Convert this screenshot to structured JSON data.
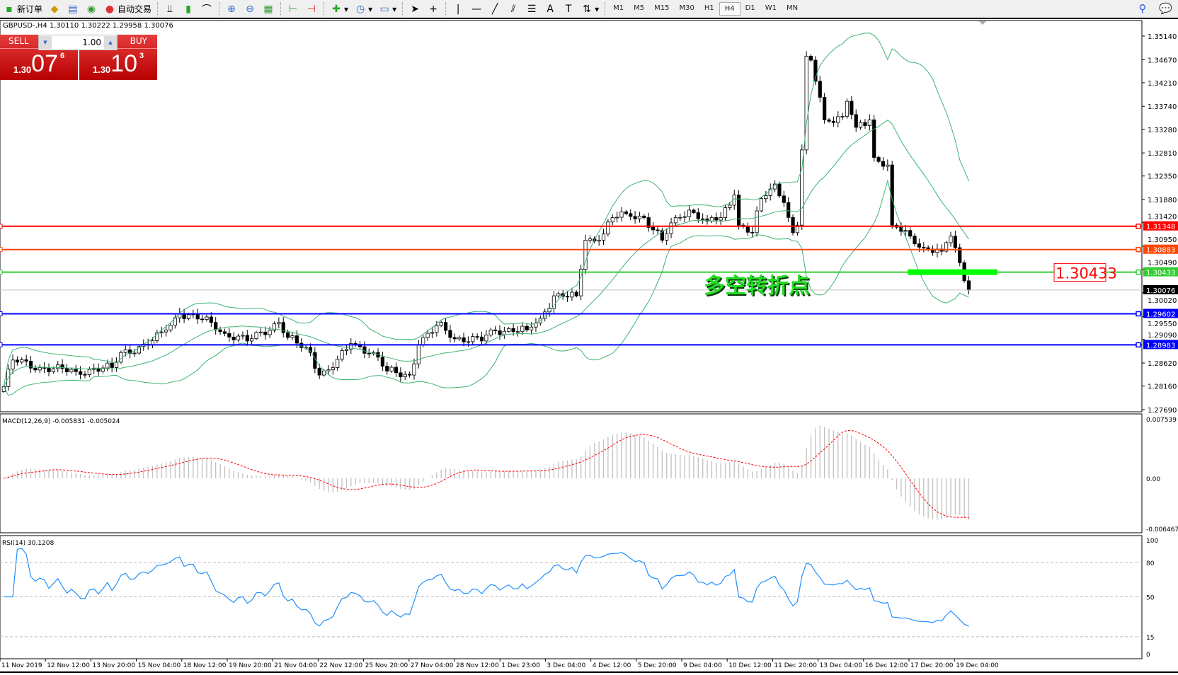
{
  "toolbar": {
    "new_order": "新订单",
    "auto_trading": "自动交易",
    "timeframes": [
      "M1",
      "M5",
      "M15",
      "M30",
      "H1",
      "H4",
      "D1",
      "W1",
      "MN"
    ],
    "active_timeframe": "H4"
  },
  "chart_info": "GBPUSD-,H4  1.30110 1.30222 1.29958 1.30076",
  "trade_panel": {
    "sell_label": "SELL",
    "buy_label": "BUY",
    "lot": "1.00",
    "sell_prefix": "1.30",
    "sell_big": "07",
    "sell_sup": "6",
    "buy_prefix": "1.30",
    "buy_big": "10",
    "buy_sup": "3"
  },
  "price_axis": [
    "1.35140",
    "1.34670",
    "1.34210",
    "1.33740",
    "1.33280",
    "1.32810",
    "1.32350",
    "1.31880",
    "1.31420",
    "1.30950",
    "1.30490",
    "1.30020",
    "1.29550",
    "1.29090",
    "1.28620",
    "1.28160",
    "1.27690"
  ],
  "hlines": [
    {
      "price": 1.31348,
      "label": "1.31348",
      "color": "#ff0000"
    },
    {
      "price": 1.30883,
      "label": "1.30883",
      "color": "#ff4500"
    },
    {
      "price": 1.30433,
      "label": "1.30433",
      "color": "#32cd32"
    },
    {
      "price": 1.29602,
      "label": "1.29602",
      "color": "#0000ff"
    },
    {
      "price": 1.28983,
      "label": "1.28983",
      "color": "#0000ff"
    }
  ],
  "current_price": {
    "price": 1.30076,
    "label": "1.30076"
  },
  "annotation_text": "多空转折点",
  "annotation_price_label": "1.30433",
  "macd": {
    "title": "MACD(12,26,9) -0.005831 -0.005024",
    "axis": [
      "0.007539",
      "0.00",
      "-0.006467"
    ]
  },
  "rsi": {
    "title": "RSI(14) 30.1208",
    "axis": [
      "100",
      "80",
      "50",
      "15",
      "0"
    ]
  },
  "time_axis": [
    "11 Nov 2019",
    "12 Nov 12:00",
    "13 Nov 20:00",
    "15 Nov 04:00",
    "18 Nov 12:00",
    "19 Nov 20:00",
    "21 Nov 04:00",
    "22 Nov 12:00",
    "25 Nov 20:00",
    "27 Nov 04:00",
    "28 Nov 12:00",
    "1 Dec 23:00",
    "3 Dec 04:00",
    "4 Dec 12:00",
    "5 Dec 20:00",
    "9 Dec 04:00",
    "10 Dec 12:00",
    "11 Dec 20:00",
    "13 Dec 04:00",
    "16 Dec 12:00",
    "17 Dec 20:00",
    "19 Dec 04:00"
  ],
  "chart_data": {
    "type": "candlestick",
    "symbol": "GBPUSD-",
    "timeframe": "H4",
    "ylim": [
      1.2769,
      1.3514
    ],
    "approx_close_by_bar": [
      [
        0,
        1.2815
      ],
      [
        2,
        1.2868
      ],
      [
        8,
        1.2853
      ],
      [
        16,
        1.2845
      ],
      [
        24,
        1.2853
      ],
      [
        26,
        1.2883
      ],
      [
        32,
        1.2898
      ],
      [
        36,
        1.2928
      ],
      [
        39,
        1.2961
      ],
      [
        46,
        1.2943
      ],
      [
        49,
        1.2921
      ],
      [
        54,
        1.2906
      ],
      [
        61,
        1.2943
      ],
      [
        63,
        1.2913
      ],
      [
        68,
        1.2883
      ],
      [
        70,
        1.2838
      ],
      [
        73,
        1.2853
      ],
      [
        77,
        1.2901
      ],
      [
        82,
        1.2883
      ],
      [
        85,
        1.2846
      ],
      [
        90,
        1.2838
      ],
      [
        92,
        1.2898
      ],
      [
        97,
        1.2943
      ],
      [
        99,
        1.2913
      ],
      [
        106,
        1.2906
      ],
      [
        108,
        1.2928
      ],
      [
        116,
        1.2928
      ],
      [
        119,
        1.2951
      ],
      [
        122,
        1.2996
      ],
      [
        127,
        1.2996
      ],
      [
        129,
        1.3107
      ],
      [
        132,
        1.3107
      ],
      [
        135,
        1.3152
      ],
      [
        138,
        1.316
      ],
      [
        142,
        1.3152
      ],
      [
        146,
        1.3107
      ],
      [
        149,
        1.3152
      ],
      [
        152,
        1.3167
      ],
      [
        156,
        1.3145
      ],
      [
        159,
        1.3152
      ],
      [
        162,
        1.3197
      ],
      [
        163,
        1.3137
      ],
      [
        166,
        1.3122
      ],
      [
        168,
        1.319
      ],
      [
        171,
        1.3219
      ],
      [
        173,
        1.3182
      ],
      [
        175,
        1.3122
      ],
      [
        176,
        1.3137
      ],
      [
        177,
        1.3287
      ],
      [
        178,
        1.3474
      ],
      [
        179,
        1.3466
      ],
      [
        181,
        1.3392
      ],
      [
        182,
        1.3347
      ],
      [
        186,
        1.3354
      ],
      [
        187,
        1.3384
      ],
      [
        189,
        1.3332
      ],
      [
        192,
        1.3347
      ],
      [
        193,
        1.3272
      ],
      [
        196,
        1.3257
      ],
      [
        197,
        1.3137
      ],
      [
        201,
        1.3115
      ],
      [
        204,
        1.3092
      ],
      [
        208,
        1.3085
      ],
      [
        210,
        1.3115
      ],
      [
        212,
        1.3062
      ],
      [
        213,
        1.3026
      ],
      [
        214,
        1.30076
      ]
    ]
  },
  "colors": {
    "bollinger": "#3cb371",
    "macd_hist": "#c0c0c0",
    "macd_signal": "#ff0000",
    "rsi": "#1e90ff",
    "sell_buy": "#d41c1c"
  }
}
